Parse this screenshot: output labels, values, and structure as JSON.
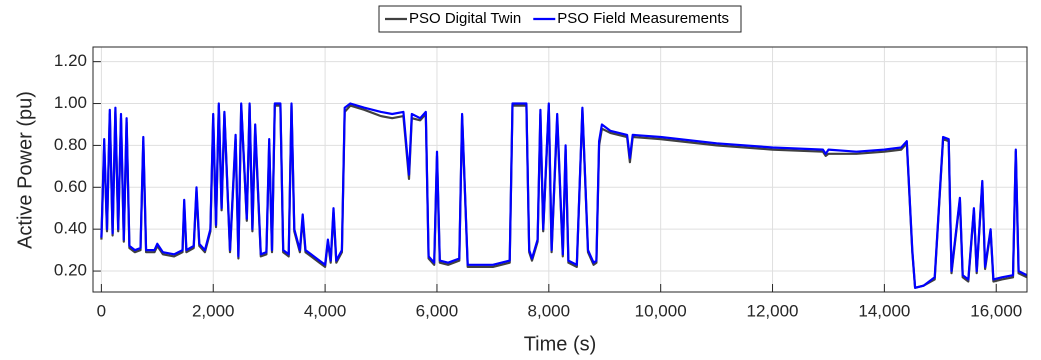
{
  "chart_data": {
    "type": "line",
    "xlabel": "Time (s)",
    "ylabel": "Active Power (pu)",
    "xlim": [
      -150,
      16550
    ],
    "ylim": [
      0.1,
      1.27
    ],
    "xticks": [
      0,
      {
        "value": 2000,
        "label": "2,000"
      },
      {
        "value": 4000,
        "label": "4,000"
      },
      {
        "value": 6000,
        "label": "6,000"
      },
      {
        "value": 8000,
        "label": "8,000"
      },
      {
        "value": 10000,
        "label": "10,000"
      },
      {
        "value": 12000,
        "label": "12,000"
      },
      {
        "value": 14000,
        "label": "14,000"
      },
      {
        "value": 16000,
        "label": "16,000"
      }
    ],
    "yticks": [
      {
        "value": 0.2,
        "label": "0.20"
      },
      {
        "value": 0.4,
        "label": "0.40"
      },
      {
        "value": 0.6,
        "label": "0.60"
      },
      {
        "value": 0.8,
        "label": "0.80"
      },
      {
        "value": 1.0,
        "label": "1.00"
      },
      {
        "value": 1.2,
        "label": "1.20"
      }
    ],
    "grid": true,
    "legend": "top",
    "x": [
      0,
      50,
      100,
      150,
      200,
      250,
      300,
      350,
      400,
      450,
      500,
      600,
      700,
      750,
      800,
      950,
      1000,
      1100,
      1300,
      1450,
      1480,
      1520,
      1650,
      1700,
      1750,
      1850,
      1950,
      2000,
      2050,
      2100,
      2150,
      2200,
      2300,
      2400,
      2450,
      2500,
      2600,
      2650,
      2700,
      2750,
      2850,
      2950,
      3000,
      3050,
      3100,
      3200,
      3250,
      3350,
      3400,
      3450,
      3550,
      3600,
      3650,
      3750,
      3900,
      4000,
      4050,
      4100,
      4150,
      4200,
      4300,
      4350,
      4450,
      4700,
      5000,
      5200,
      5400,
      5500,
      5550,
      5700,
      5800,
      5850,
      5950,
      6000,
      6050,
      6200,
      6400,
      6450,
      6550,
      6800,
      7000,
      7300,
      7350,
      7600,
      7650,
      7700,
      7800,
      7850,
      7900,
      8000,
      8050,
      8150,
      8250,
      8300,
      8350,
      8500,
      8600,
      8700,
      8800,
      8850,
      8900,
      8950,
      9100,
      9400,
      9450,
      9500,
      10000,
      11000,
      12000,
      12900,
      12950,
      13000,
      13500,
      14000,
      14300,
      14400,
      14500,
      14550,
      14700,
      14900,
      15050,
      15150,
      15200,
      15350,
      15400,
      15500,
      15600,
      15650,
      15750,
      15800,
      15900,
      15950,
      16100,
      16300,
      16350,
      16400,
      16550
    ],
    "series": [
      {
        "name": "PSO Digital Twin",
        "color": "#404040",
        "values": [
          0.35,
          0.8,
          0.39,
          0.95,
          0.37,
          0.96,
          0.39,
          0.93,
          0.34,
          0.91,
          0.31,
          0.29,
          0.3,
          0.82,
          0.29,
          0.29,
          0.32,
          0.28,
          0.27,
          0.29,
          0.52,
          0.29,
          0.31,
          0.58,
          0.32,
          0.29,
          0.39,
          0.93,
          0.41,
          0.99,
          0.49,
          0.95,
          0.29,
          0.83,
          0.26,
          0.99,
          0.44,
          0.99,
          0.39,
          0.88,
          0.27,
          0.28,
          0.81,
          0.29,
          0.99,
          0.99,
          0.29,
          0.27,
          0.99,
          0.39,
          0.29,
          0.45,
          0.29,
          0.27,
          0.24,
          0.22,
          0.34,
          0.24,
          0.48,
          0.24,
          0.29,
          0.96,
          0.99,
          0.97,
          0.94,
          0.93,
          0.94,
          0.64,
          0.93,
          0.92,
          0.95,
          0.26,
          0.23,
          0.75,
          0.24,
          0.23,
          0.25,
          0.94,
          0.22,
          0.22,
          0.22,
          0.24,
          0.99,
          0.99,
          0.29,
          0.25,
          0.34,
          0.95,
          0.39,
          0.99,
          0.29,
          0.93,
          0.27,
          0.78,
          0.24,
          0.22,
          0.97,
          0.29,
          0.23,
          0.24,
          0.8,
          0.88,
          0.86,
          0.84,
          0.72,
          0.84,
          0.83,
          0.8,
          0.78,
          0.77,
          0.75,
          0.76,
          0.76,
          0.77,
          0.78,
          0.81,
          0.29,
          0.12,
          0.13,
          0.16,
          0.83,
          0.82,
          0.19,
          0.54,
          0.17,
          0.15,
          0.49,
          0.19,
          0.62,
          0.21,
          0.39,
          0.15,
          0.16,
          0.17,
          0.77,
          0.19,
          0.17
        ]
      },
      {
        "name": "PSO Field Measurements",
        "color": "#0000ff",
        "values": [
          0.36,
          0.83,
          0.4,
          0.97,
          0.38,
          0.98,
          0.4,
          0.95,
          0.35,
          0.93,
          0.32,
          0.3,
          0.31,
          0.84,
          0.3,
          0.3,
          0.33,
          0.29,
          0.28,
          0.3,
          0.54,
          0.3,
          0.32,
          0.6,
          0.33,
          0.3,
          0.4,
          0.95,
          0.42,
          1.0,
          0.5,
          0.96,
          0.3,
          0.85,
          0.27,
          1.0,
          0.45,
          1.0,
          0.4,
          0.9,
          0.28,
          0.29,
          0.83,
          0.3,
          1.0,
          1.0,
          0.3,
          0.28,
          1.0,
          0.4,
          0.3,
          0.47,
          0.3,
          0.28,
          0.25,
          0.23,
          0.35,
          0.25,
          0.5,
          0.25,
          0.3,
          0.98,
          1.0,
          0.98,
          0.96,
          0.95,
          0.96,
          0.66,
          0.95,
          0.93,
          0.96,
          0.27,
          0.24,
          0.77,
          0.25,
          0.24,
          0.26,
          0.95,
          0.23,
          0.23,
          0.23,
          0.25,
          1.0,
          1.0,
          0.3,
          0.26,
          0.35,
          0.97,
          0.4,
          1.0,
          0.3,
          0.95,
          0.28,
          0.8,
          0.25,
          0.23,
          0.98,
          0.3,
          0.24,
          0.25,
          0.82,
          0.9,
          0.87,
          0.85,
          0.74,
          0.85,
          0.84,
          0.81,
          0.79,
          0.78,
          0.76,
          0.78,
          0.77,
          0.78,
          0.79,
          0.82,
          0.3,
          0.12,
          0.13,
          0.17,
          0.84,
          0.83,
          0.2,
          0.55,
          0.18,
          0.16,
          0.5,
          0.2,
          0.63,
          0.22,
          0.4,
          0.16,
          0.17,
          0.18,
          0.78,
          0.2,
          0.18
        ]
      }
    ]
  }
}
